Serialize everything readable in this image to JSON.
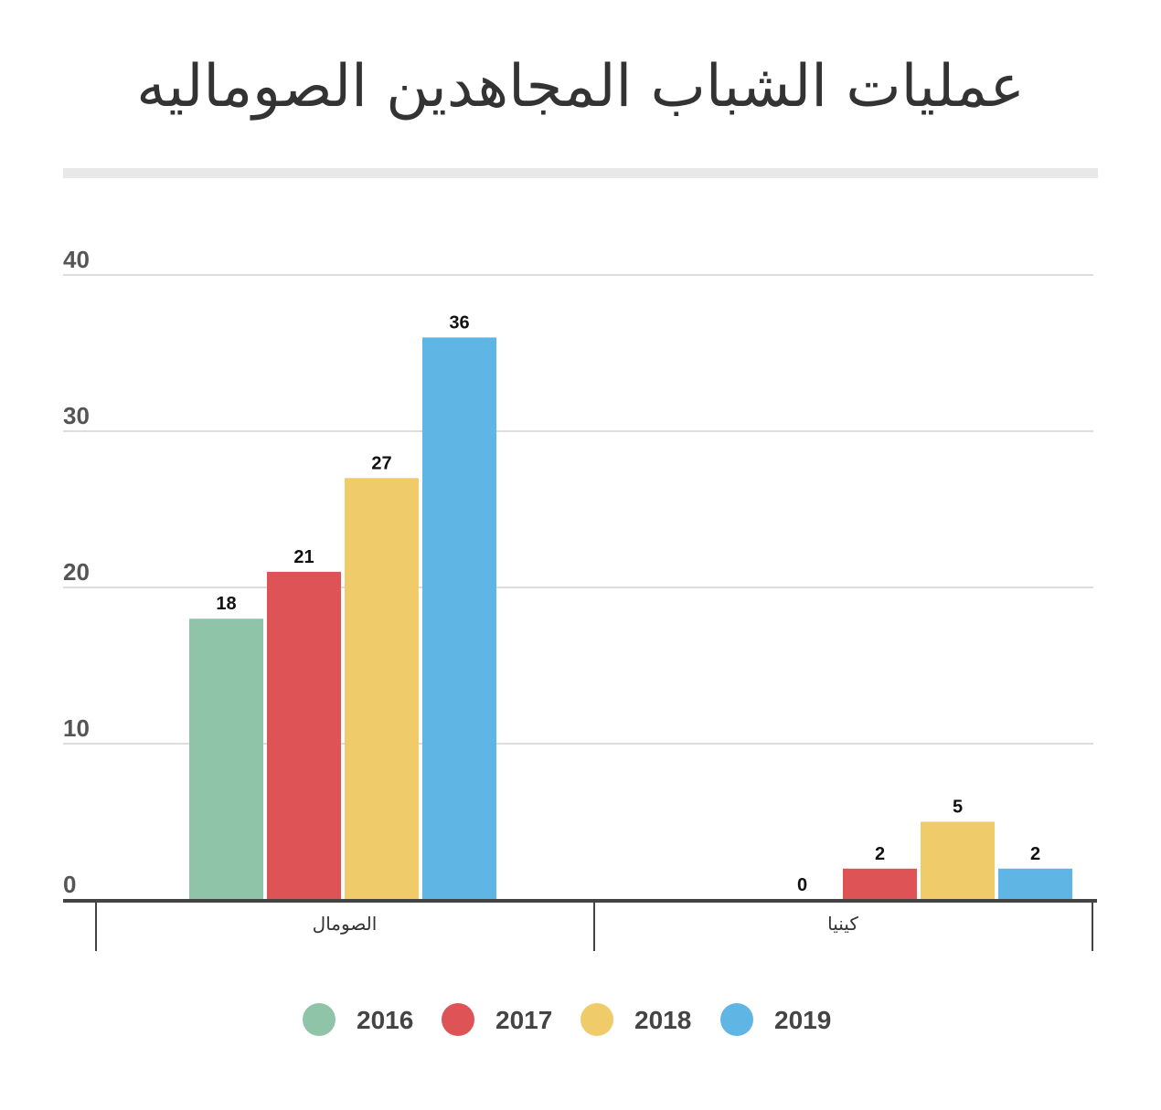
{
  "title": "عمليات الشباب المجاهدين الصوماليه",
  "chart_data": {
    "type": "bar",
    "title": "عمليات الشباب المجاهدين الصوماليه",
    "categories": [
      "الصومال",
      "كينيا"
    ],
    "series": [
      {
        "name": "2016",
        "color": "#8fc4a9",
        "values": [
          18,
          0
        ]
      },
      {
        "name": "2017",
        "color": "#de5356",
        "values": [
          21,
          2
        ]
      },
      {
        "name": "2018",
        "color": "#efcb6a",
        "values": [
          27,
          5
        ]
      },
      {
        "name": "2019",
        "color": "#5fb6e5",
        "values": [
          36,
          2
        ]
      }
    ],
    "yticks": [
      0,
      10,
      20,
      30,
      40
    ],
    "ylim": [
      0,
      40
    ],
    "xlabel": "",
    "ylabel": "",
    "grid": true,
    "legend": "bottom-center"
  }
}
